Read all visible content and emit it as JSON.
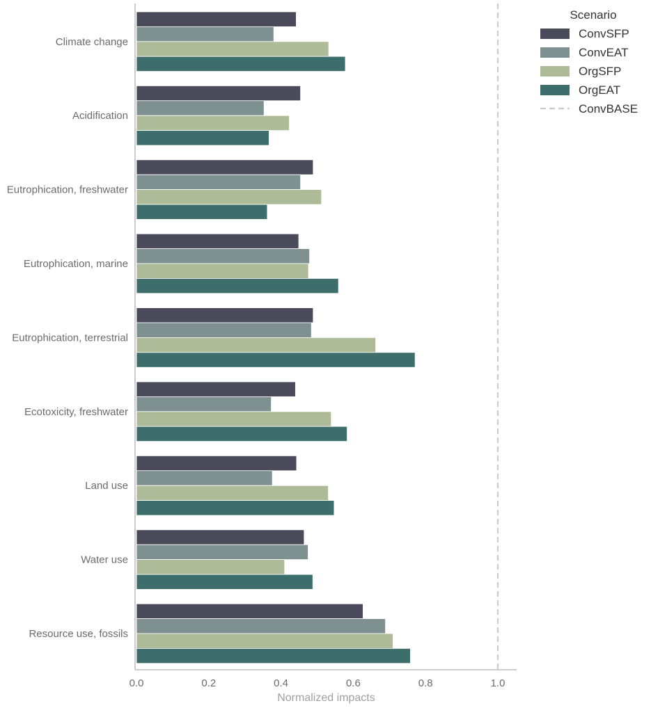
{
  "chart_data": {
    "type": "bar",
    "orientation": "horizontal",
    "categories": [
      "Climate change",
      "Acidification",
      "Eutrophication, freshwater",
      "Eutrophication, marine",
      "Eutrophication, terrestrial",
      "Ecotoxicity, freshwater",
      "Land use",
      "Water use",
      "Resource use, fossils"
    ],
    "series": [
      {
        "name": "ConvSFP",
        "color": "#4a4a5a",
        "values": [
          0.442,
          0.454,
          0.489,
          0.449,
          0.489,
          0.44,
          0.443,
          0.464,
          0.627
        ]
      },
      {
        "name": "ConvEAT",
        "color": "#7f9090",
        "values": [
          0.38,
          0.353,
          0.454,
          0.479,
          0.484,
          0.373,
          0.376,
          0.475,
          0.689
        ]
      },
      {
        "name": "OrgSFP",
        "color": "#adbb98",
        "values": [
          0.532,
          0.423,
          0.512,
          0.476,
          0.662,
          0.539,
          0.531,
          0.41,
          0.71
        ]
      },
      {
        "name": "OrgEAT",
        "color": "#3d6e6c",
        "values": [
          0.578,
          0.367,
          0.362,
          0.559,
          0.771,
          0.583,
          0.547,
          0.488,
          0.758
        ]
      }
    ],
    "reference_line": {
      "name": "ConvBASE",
      "value": 1.0,
      "color": "#cccccc",
      "style": "dashed"
    },
    "xlabel": "Normalized impacts",
    "ylabel": "",
    "xlim": [
      0.0,
      1.05
    ],
    "xticks": [
      "0.0",
      "0.2",
      "0.4",
      "0.6",
      "0.8",
      "1.0"
    ],
    "grid": false,
    "legend": {
      "title": "Scenario",
      "position": "top-right"
    }
  }
}
